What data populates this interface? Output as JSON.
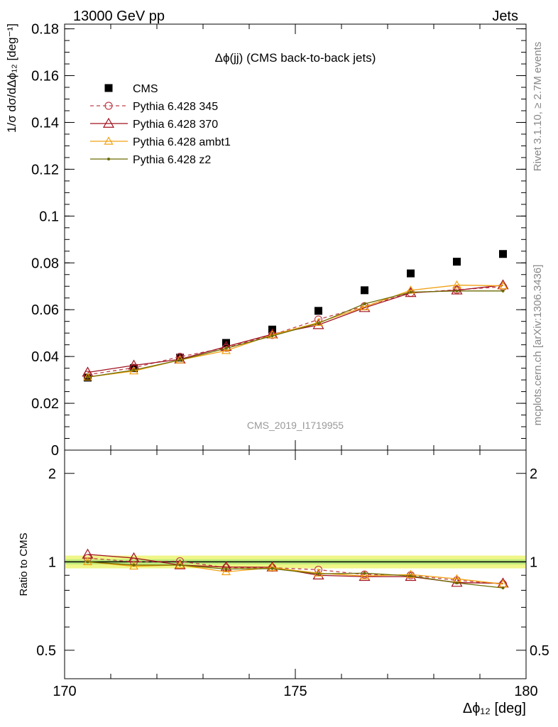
{
  "header": {
    "left": "13000 GeV pp",
    "right": "Jets"
  },
  "side_labels": {
    "rivet": "Rivet 3.1.10, ≥ 2.7M events",
    "mcplots": "mcplots.cern.ch [arXiv:1306.3436]"
  },
  "analysis_id": "CMS_2019_I1719955",
  "chart_data": [
    {
      "type": "line",
      "title": "Δϕ(jj) (CMS back-to-back jets)",
      "ylabel": "1/σ dσ/dΔϕ₁₂ [deg⁻¹]",
      "xlabel": "Δϕ₁₂ [deg]",
      "xlim": [
        170,
        180
      ],
      "ylim": [
        0,
        0.182
      ],
      "x_ticks": [
        "170",
        "175",
        "180"
      ],
      "y_ticks": [
        "0",
        "0.02",
        "0.04",
        "0.06",
        "0.08",
        "0.1",
        "0.12",
        "0.14",
        "0.16",
        "0.18"
      ],
      "x": [
        170.5,
        171.5,
        172.5,
        173.5,
        174.5,
        175.5,
        176.5,
        177.5,
        178.5,
        179.5
      ],
      "legend_position": "top-left",
      "series": [
        {
          "name": "CMS",
          "style": "markers",
          "color": "#000000",
          "values": [
            0.031,
            0.035,
            0.0395,
            0.0458,
            0.0515,
            0.0595,
            0.0683,
            0.0755,
            0.0805,
            0.0838
          ]
        },
        {
          "name": "Pythia 6.428 345",
          "style": "dashed-circle",
          "color": "#c0404a",
          "values": [
            0.0322,
            0.0352,
            0.0399,
            0.0437,
            0.0492,
            0.0558,
            0.0615,
            0.0672,
            0.0685,
            0.0698
          ]
        },
        {
          "name": "Pythia 6.428 370",
          "style": "solid-triangle",
          "color": "#a0101e",
          "values": [
            0.0332,
            0.0362,
            0.0388,
            0.0442,
            0.0495,
            0.0535,
            0.0608,
            0.0672,
            0.0683,
            0.0705
          ]
        },
        {
          "name": "Pythia 6.428 ambt1",
          "style": "solid-open-triangle",
          "color": "#f0a010",
          "values": [
            0.0312,
            0.0338,
            0.0385,
            0.0425,
            0.0492,
            0.0545,
            0.0612,
            0.0683,
            0.0705,
            0.0702
          ]
        },
        {
          "name": "Pythia 6.428 z2",
          "style": "solid-dot",
          "color": "#6b6b00",
          "values": [
            0.0312,
            0.0342,
            0.0385,
            0.0435,
            0.0488,
            0.0542,
            0.0625,
            0.0675,
            0.068,
            0.068
          ]
        }
      ]
    },
    {
      "type": "line",
      "title": "",
      "ylabel": "Ratio to CMS",
      "xlabel": "Δϕ₁₂ [deg]",
      "xlim": [
        170,
        180
      ],
      "ylim": [
        0.4,
        2.4
      ],
      "y_scale": "log",
      "y_ticks": [
        "0.5",
        "1",
        "2"
      ],
      "x": [
        170.5,
        171.5,
        172.5,
        173.5,
        174.5,
        175.5,
        176.5,
        177.5,
        178.5,
        179.5
      ],
      "reference_band": [
        0.95,
        1.05
      ],
      "series": [
        {
          "name": "Pythia 6.428 345",
          "color": "#c0404a",
          "values": [
            1.03,
            1.0,
            1.005,
            0.955,
            0.955,
            0.94,
            0.905,
            0.9,
            0.865,
            0.84
          ]
        },
        {
          "name": "Pythia 6.428 370",
          "color": "#a0101e",
          "values": [
            1.06,
            1.03,
            0.975,
            0.96,
            0.958,
            0.9,
            0.89,
            0.89,
            0.85,
            0.845
          ]
        },
        {
          "name": "Pythia 6.428 ambt1",
          "color": "#f0a010",
          "values": [
            1.0,
            0.966,
            0.975,
            0.925,
            0.955,
            0.915,
            0.895,
            0.905,
            0.875,
            0.84
          ]
        },
        {
          "name": "Pythia 6.428 z2",
          "color": "#6b6b00",
          "values": [
            1.0,
            0.975,
            0.975,
            0.945,
            0.948,
            0.91,
            0.915,
            0.895,
            0.848,
            0.815
          ]
        }
      ]
    }
  ]
}
